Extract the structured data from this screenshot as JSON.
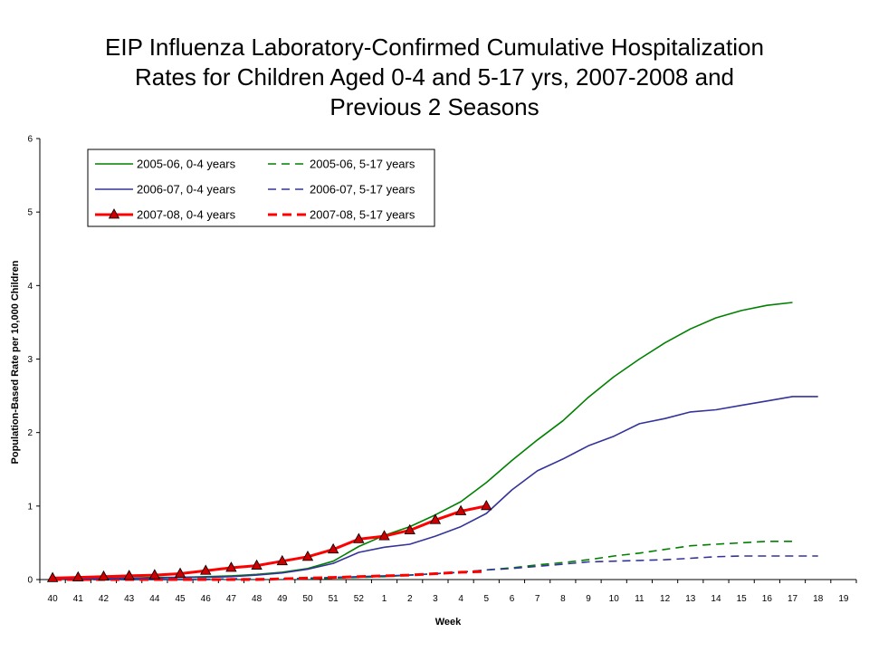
{
  "title_lines": [
    "EIP Influenza Laboratory-Confirmed Cumulative Hospitalization",
    "Rates for Children Aged 0-4 and 5-17 yrs, 2007-2008 and",
    "Previous 2 Seasons"
  ],
  "chart_data": {
    "type": "line",
    "title": "EIP Influenza Laboratory-Confirmed Cumulative Hospitalization Rates for Children Aged 0-4 and 5-17 yrs, 2007-2008 and Previous 2 Seasons",
    "xlabel": "Week",
    "ylabel": "Population-Based Rate per 10,000 Children",
    "ylim": [
      0,
      6
    ],
    "yticks": [
      "0",
      "1",
      "2",
      "3",
      "4",
      "5",
      "6"
    ],
    "categories": [
      "40",
      "41",
      "42",
      "43",
      "44",
      "45",
      "46",
      "47",
      "48",
      "49",
      "50",
      "51",
      "52",
      "1",
      "2",
      "3",
      "4",
      "5",
      "6",
      "7",
      "8",
      "9",
      "10",
      "11",
      "12",
      "13",
      "14",
      "15",
      "16",
      "17",
      "18",
      "19"
    ],
    "grid": false,
    "legend_position": "top-left inside",
    "series": [
      {
        "name": "2005-06, 0-4 years",
        "color": "#008000",
        "style": "solid",
        "values": [
          0.01,
          0.01,
          0.02,
          0.02,
          0.03,
          0.03,
          0.04,
          0.05,
          0.07,
          0.1,
          0.15,
          0.25,
          0.45,
          0.6,
          0.72,
          0.88,
          1.06,
          1.32,
          1.62,
          1.9,
          2.16,
          2.48,
          2.76,
          3.0,
          3.22,
          3.41,
          3.56,
          3.66,
          3.73,
          3.77,
          null,
          null
        ]
      },
      {
        "name": "2005-06, 5-17 years",
        "color": "#008000",
        "style": "dashed",
        "values": [
          0.0,
          0.0,
          0.0,
          0.0,
          0.0,
          0.0,
          0.0,
          0.01,
          0.01,
          0.01,
          0.01,
          0.02,
          0.03,
          0.04,
          0.06,
          0.08,
          0.1,
          0.13,
          0.16,
          0.2,
          0.23,
          0.27,
          0.32,
          0.36,
          0.41,
          0.46,
          0.48,
          0.5,
          0.52,
          0.52,
          null,
          null
        ]
      },
      {
        "name": "2006-07, 0-4 years",
        "color": "#333399",
        "style": "solid",
        "values": [
          0.01,
          0.01,
          0.01,
          0.02,
          0.02,
          0.03,
          0.03,
          0.04,
          0.06,
          0.09,
          0.14,
          0.22,
          0.37,
          0.44,
          0.48,
          0.59,
          0.72,
          0.9,
          1.22,
          1.48,
          1.64,
          1.82,
          1.95,
          2.12,
          2.19,
          2.28,
          2.31,
          2.37,
          2.43,
          2.49,
          2.49,
          null
        ]
      },
      {
        "name": "2006-07, 5-17 years",
        "color": "#333399",
        "style": "dashed",
        "values": [
          0.0,
          0.0,
          0.0,
          0.0,
          0.0,
          0.0,
          0.0,
          0.01,
          0.01,
          0.01,
          0.02,
          0.03,
          0.04,
          0.05,
          0.06,
          0.08,
          0.1,
          0.13,
          0.15,
          0.18,
          0.21,
          0.24,
          0.25,
          0.26,
          0.27,
          0.29,
          0.31,
          0.32,
          0.32,
          0.32,
          0.32,
          null
        ]
      },
      {
        "name": "2007-08, 0-4 years",
        "color": "#ff0000",
        "marker_color": "#cc0000",
        "style": "solid-triangle",
        "values": [
          0.02,
          0.03,
          0.04,
          0.05,
          0.06,
          0.08,
          0.12,
          0.16,
          0.19,
          0.25,
          0.31,
          0.41,
          0.55,
          0.59,
          0.67,
          0.81,
          0.93,
          1.0,
          null,
          null,
          null,
          null,
          null,
          null,
          null,
          null,
          null,
          null,
          null,
          null,
          null,
          null
        ]
      },
      {
        "name": "2007-08, 5-17 years",
        "color": "#ff0000",
        "style": "dashed-thick",
        "values": [
          0.0,
          0.0,
          0.0,
          0.0,
          0.0,
          0.0,
          0.0,
          0.0,
          0.0,
          0.01,
          0.02,
          0.03,
          0.04,
          0.05,
          0.06,
          0.08,
          0.1,
          0.11,
          null,
          null,
          null,
          null,
          null,
          null,
          null,
          null,
          null,
          null,
          null,
          null,
          null,
          null
        ]
      }
    ]
  }
}
